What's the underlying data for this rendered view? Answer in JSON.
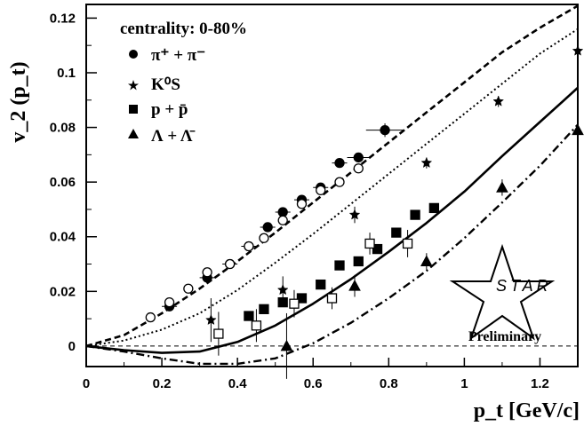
{
  "chart_data": {
    "type": "scatter",
    "title": "",
    "xlabel": "p_t [GeV/c]",
    "ylabel": "v_2 (p_t)",
    "xlim": [
      0,
      1.3
    ],
    "ylim": [
      -0.0075,
      0.125
    ],
    "xticks": [
      "0",
      "0.2",
      "0.4",
      "0.6",
      "0.8",
      "1",
      "1.2"
    ],
    "yticks": [
      "0",
      "0.02",
      "0.04",
      "0.06",
      "0.08",
      "0.1",
      "0.12"
    ],
    "legend": {
      "title": "centrality: 0-80%",
      "entries": [
        {
          "key": "pion",
          "label": "π⁺ + π⁻",
          "marker": "circle"
        },
        {
          "key": "kaon",
          "label": "K⁰S",
          "marker": "star"
        },
        {
          "key": "proton",
          "label": "p + p̄",
          "marker": "square"
        },
        {
          "key": "lambda",
          "label": "Λ + Λ̄",
          "marker": "triangle"
        }
      ]
    },
    "series": [
      {
        "name": "π⁺ + π⁻ (filled)",
        "marker": "circle",
        "filled": true,
        "x": [
          0.22,
          0.32,
          0.38,
          0.43,
          0.48,
          0.52,
          0.57,
          0.62,
          0.67,
          0.72,
          0.79
        ],
        "y": [
          0.0145,
          0.025,
          0.03,
          0.0365,
          0.0435,
          0.049,
          0.0535,
          0.058,
          0.067,
          0.069,
          0.079
        ],
        "yerr": [
          0.0008,
          0.0008,
          0.0008,
          0.0008,
          0.0008,
          0.0009,
          0.0009,
          0.0009,
          0.001,
          0.0012,
          0.0025
        ],
        "xerr": [
          0.02,
          0.02,
          0.02,
          0.02,
          0.02,
          0.02,
          0.02,
          0.02,
          0.02,
          0.03,
          0.05
        ]
      },
      {
        "name": "π⁺ + π⁻ (open)",
        "marker": "circle",
        "filled": false,
        "x": [
          0.17,
          0.22,
          0.27,
          0.32,
          0.38,
          0.43,
          0.47,
          0.52,
          0.57,
          0.62,
          0.67,
          0.72
        ],
        "y": [
          0.0105,
          0.016,
          0.021,
          0.027,
          0.03,
          0.0365,
          0.0395,
          0.046,
          0.052,
          0.057,
          0.06,
          0.065
        ]
      },
      {
        "name": "K⁰S",
        "marker": "star",
        "filled": true,
        "x": [
          0.33,
          0.52,
          0.71,
          0.9,
          1.09,
          1.3
        ],
        "y": [
          0.0095,
          0.0205,
          0.048,
          0.067,
          0.0895,
          0.108
        ],
        "yerr": [
          0.008,
          0.005,
          0.003,
          0.002,
          0.002,
          0.003
        ]
      },
      {
        "name": "p + p̄ (filled)",
        "marker": "square",
        "filled": true,
        "x": [
          0.43,
          0.47,
          0.52,
          0.57,
          0.62,
          0.67,
          0.72,
          0.77,
          0.82,
          0.87,
          0.92
        ],
        "y": [
          0.011,
          0.0135,
          0.016,
          0.0175,
          0.0225,
          0.0295,
          0.031,
          0.0355,
          0.0415,
          0.048,
          0.0505
        ]
      },
      {
        "name": "p + p̄ (open)",
        "marker": "square",
        "filled": false,
        "x": [
          0.35,
          0.45,
          0.55,
          0.65,
          0.75,
          0.85
        ],
        "y": [
          0.0045,
          0.0075,
          0.0155,
          0.0175,
          0.0375,
          0.0375
        ],
        "yerr": [
          0.008,
          0.006,
          0.005,
          0.004,
          0.004,
          0.005
        ]
      },
      {
        "name": "Λ + Λ̄",
        "marker": "triangle",
        "filled": true,
        "x": [
          0.53,
          0.71,
          0.9,
          1.1,
          1.3
        ],
        "y": [
          0.0,
          0.022,
          0.031,
          0.058,
          0.079
        ],
        "yerr": [
          0.012,
          0.004,
          0.003,
          0.003,
          0.003
        ]
      }
    ],
    "curves": [
      {
        "name": "dashed",
        "style": "dashed",
        "x": [
          0,
          0.1,
          0.2,
          0.3,
          0.4,
          0.5,
          0.6,
          0.7,
          0.8,
          0.9,
          1.0,
          1.1,
          1.2,
          1.3
        ],
        "y": [
          0,
          0.004,
          0.012,
          0.021,
          0.031,
          0.0415,
          0.0525,
          0.0635,
          0.0745,
          0.0855,
          0.0965,
          0.1075,
          0.1165,
          0.1245
        ]
      },
      {
        "name": "dotted",
        "style": "dotted",
        "x": [
          0,
          0.1,
          0.2,
          0.3,
          0.4,
          0.5,
          0.6,
          0.7,
          0.8,
          0.9,
          1.0,
          1.1,
          1.2,
          1.3
        ],
        "y": [
          0,
          0.002,
          0.006,
          0.012,
          0.0205,
          0.0305,
          0.041,
          0.052,
          0.063,
          0.074,
          0.085,
          0.096,
          0.107,
          0.116
        ]
      },
      {
        "name": "solid",
        "style": "solid",
        "x": [
          0,
          0.1,
          0.2,
          0.3,
          0.4,
          0.5,
          0.6,
          0.7,
          0.8,
          0.9,
          1.0,
          1.1,
          1.2,
          1.3
        ],
        "y": [
          0,
          -0.0015,
          -0.0025,
          -0.002,
          0.0015,
          0.0075,
          0.0155,
          0.0245,
          0.0345,
          0.045,
          0.0565,
          0.0695,
          0.082,
          0.0945
        ]
      },
      {
        "name": "dash-dot",
        "style": "dashdot",
        "x": [
          0,
          0.1,
          0.2,
          0.3,
          0.4,
          0.5,
          0.6,
          0.7,
          0.8,
          0.9,
          1.0,
          1.1,
          1.2,
          1.3
        ],
        "y": [
          0,
          -0.002,
          -0.0045,
          -0.0065,
          -0.0065,
          -0.0045,
          0.001,
          0.0085,
          0.0175,
          0.0275,
          0.0395,
          0.0525,
          0.066,
          0.081
        ]
      }
    ],
    "reference_line": {
      "y": 0,
      "style": "dashed"
    },
    "logo": {
      "text": "STAR",
      "subtitle": "Preliminary"
    }
  }
}
